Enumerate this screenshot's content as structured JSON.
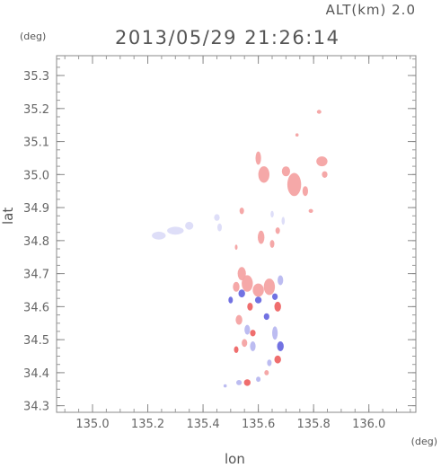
{
  "header": {
    "altitude_label": "ALT(km) 2.0",
    "timestamp": "2013/05/29 21:26:14"
  },
  "axes": {
    "x_unit": "(deg)",
    "y_unit": "(deg)",
    "x_label": "lon",
    "y_label": "lat"
  },
  "chart_data": {
    "type": "heatmap",
    "xlabel": "lon",
    "ylabel": "lat",
    "xlim": [
      134.87,
      136.17
    ],
    "ylim": [
      34.28,
      35.36
    ],
    "x_ticks": [
      "135.0",
      "135.2",
      "135.4",
      "135.6",
      "135.8",
      "136.0"
    ],
    "y_ticks": [
      "34.3",
      "34.4",
      "34.5",
      "34.6",
      "34.7",
      "34.8",
      "34.9",
      "35.0",
      "35.1",
      "35.2",
      "35.3"
    ],
    "colors": {
      "positive": "#f4a3a3",
      "positive_strong": "#ee6666",
      "negative": "#b8b8f0",
      "negative_strong": "#6a6ae0",
      "faint_negative": "#dcdcf8"
    },
    "blobs": [
      {
        "lon": 135.24,
        "lat": 34.815,
        "rx": 0.025,
        "ry": 0.012,
        "sign": "neg",
        "strength": "faint"
      },
      {
        "lon": 135.3,
        "lat": 34.83,
        "rx": 0.03,
        "ry": 0.012,
        "sign": "neg",
        "strength": "faint"
      },
      {
        "lon": 135.35,
        "lat": 34.845,
        "rx": 0.015,
        "ry": 0.012,
        "sign": "neg",
        "strength": "faint"
      },
      {
        "lon": 135.45,
        "lat": 34.87,
        "rx": 0.01,
        "ry": 0.01,
        "sign": "neg",
        "strength": "faint"
      },
      {
        "lon": 135.46,
        "lat": 34.84,
        "rx": 0.008,
        "ry": 0.012,
        "sign": "neg",
        "strength": "faint"
      },
      {
        "lon": 135.82,
        "lat": 35.19,
        "rx": 0.008,
        "ry": 0.006,
        "sign": "pos",
        "strength": "weak"
      },
      {
        "lon": 135.74,
        "lat": 35.12,
        "rx": 0.006,
        "ry": 0.005,
        "sign": "pos",
        "strength": "weak"
      },
      {
        "lon": 135.6,
        "lat": 35.05,
        "rx": 0.01,
        "ry": 0.02,
        "sign": "pos",
        "strength": "weak"
      },
      {
        "lon": 135.62,
        "lat": 35.0,
        "rx": 0.02,
        "ry": 0.025,
        "sign": "pos",
        "strength": "weak"
      },
      {
        "lon": 135.7,
        "lat": 35.01,
        "rx": 0.015,
        "ry": 0.015,
        "sign": "pos",
        "strength": "weak"
      },
      {
        "lon": 135.73,
        "lat": 34.97,
        "rx": 0.025,
        "ry": 0.035,
        "sign": "pos",
        "strength": "weak"
      },
      {
        "lon": 135.77,
        "lat": 34.95,
        "rx": 0.01,
        "ry": 0.015,
        "sign": "pos",
        "strength": "weak"
      },
      {
        "lon": 135.83,
        "lat": 35.04,
        "rx": 0.02,
        "ry": 0.015,
        "sign": "pos",
        "strength": "weak"
      },
      {
        "lon": 135.84,
        "lat": 35.0,
        "rx": 0.01,
        "ry": 0.01,
        "sign": "pos",
        "strength": "weak"
      },
      {
        "lon": 135.79,
        "lat": 34.89,
        "rx": 0.008,
        "ry": 0.006,
        "sign": "pos",
        "strength": "weak"
      },
      {
        "lon": 135.54,
        "lat": 34.89,
        "rx": 0.008,
        "ry": 0.01,
        "sign": "pos",
        "strength": "weak"
      },
      {
        "lon": 135.65,
        "lat": 34.88,
        "rx": 0.006,
        "ry": 0.01,
        "sign": "neg",
        "strength": "faint"
      },
      {
        "lon": 135.69,
        "lat": 34.86,
        "rx": 0.006,
        "ry": 0.012,
        "sign": "neg",
        "strength": "faint"
      },
      {
        "lon": 135.61,
        "lat": 34.81,
        "rx": 0.012,
        "ry": 0.02,
        "sign": "pos",
        "strength": "weak"
      },
      {
        "lon": 135.65,
        "lat": 34.79,
        "rx": 0.008,
        "ry": 0.012,
        "sign": "pos",
        "strength": "weak"
      },
      {
        "lon": 135.67,
        "lat": 34.83,
        "rx": 0.008,
        "ry": 0.01,
        "sign": "pos",
        "strength": "weak"
      },
      {
        "lon": 135.52,
        "lat": 34.78,
        "rx": 0.005,
        "ry": 0.008,
        "sign": "pos",
        "strength": "weak"
      },
      {
        "lon": 135.54,
        "lat": 34.7,
        "rx": 0.015,
        "ry": 0.02,
        "sign": "pos",
        "strength": "weak"
      },
      {
        "lon": 135.56,
        "lat": 34.67,
        "rx": 0.02,
        "ry": 0.025,
        "sign": "pos",
        "strength": "weak"
      },
      {
        "lon": 135.52,
        "lat": 34.66,
        "rx": 0.012,
        "ry": 0.015,
        "sign": "pos",
        "strength": "weak"
      },
      {
        "lon": 135.54,
        "lat": 34.64,
        "rx": 0.012,
        "ry": 0.012,
        "sign": "neg",
        "strength": "strong"
      },
      {
        "lon": 135.5,
        "lat": 34.62,
        "rx": 0.008,
        "ry": 0.01,
        "sign": "neg",
        "strength": "strong"
      },
      {
        "lon": 135.57,
        "lat": 34.6,
        "rx": 0.01,
        "ry": 0.012,
        "sign": "pos",
        "strength": "strong"
      },
      {
        "lon": 135.6,
        "lat": 34.65,
        "rx": 0.02,
        "ry": 0.02,
        "sign": "pos",
        "strength": "weak"
      },
      {
        "lon": 135.6,
        "lat": 34.62,
        "rx": 0.012,
        "ry": 0.01,
        "sign": "neg",
        "strength": "strong"
      },
      {
        "lon": 135.64,
        "lat": 34.66,
        "rx": 0.02,
        "ry": 0.025,
        "sign": "pos",
        "strength": "weak"
      },
      {
        "lon": 135.66,
        "lat": 34.63,
        "rx": 0.01,
        "ry": 0.01,
        "sign": "neg",
        "strength": "strong"
      },
      {
        "lon": 135.68,
        "lat": 34.68,
        "rx": 0.01,
        "ry": 0.015,
        "sign": "neg",
        "strength": "weak"
      },
      {
        "lon": 135.67,
        "lat": 34.6,
        "rx": 0.012,
        "ry": 0.015,
        "sign": "pos",
        "strength": "strong"
      },
      {
        "lon": 135.63,
        "lat": 34.57,
        "rx": 0.01,
        "ry": 0.01,
        "sign": "neg",
        "strength": "strong"
      },
      {
        "lon": 135.53,
        "lat": 34.56,
        "rx": 0.012,
        "ry": 0.015,
        "sign": "pos",
        "strength": "weak"
      },
      {
        "lon": 135.56,
        "lat": 34.53,
        "rx": 0.01,
        "ry": 0.015,
        "sign": "neg",
        "strength": "weak"
      },
      {
        "lon": 135.58,
        "lat": 34.52,
        "rx": 0.01,
        "ry": 0.01,
        "sign": "pos",
        "strength": "strong"
      },
      {
        "lon": 135.55,
        "lat": 34.49,
        "rx": 0.01,
        "ry": 0.012,
        "sign": "pos",
        "strength": "weak"
      },
      {
        "lon": 135.52,
        "lat": 34.47,
        "rx": 0.008,
        "ry": 0.01,
        "sign": "pos",
        "strength": "strong"
      },
      {
        "lon": 135.58,
        "lat": 34.48,
        "rx": 0.01,
        "ry": 0.015,
        "sign": "neg",
        "strength": "weak"
      },
      {
        "lon": 135.66,
        "lat": 34.52,
        "rx": 0.01,
        "ry": 0.02,
        "sign": "neg",
        "strength": "weak"
      },
      {
        "lon": 135.68,
        "lat": 34.48,
        "rx": 0.012,
        "ry": 0.015,
        "sign": "neg",
        "strength": "strong"
      },
      {
        "lon": 135.67,
        "lat": 34.44,
        "rx": 0.012,
        "ry": 0.012,
        "sign": "pos",
        "strength": "strong"
      },
      {
        "lon": 135.64,
        "lat": 34.43,
        "rx": 0.008,
        "ry": 0.01,
        "sign": "neg",
        "strength": "weak"
      },
      {
        "lon": 135.56,
        "lat": 34.37,
        "rx": 0.012,
        "ry": 0.01,
        "sign": "pos",
        "strength": "strong"
      },
      {
        "lon": 135.53,
        "lat": 34.37,
        "rx": 0.01,
        "ry": 0.008,
        "sign": "neg",
        "strength": "weak"
      },
      {
        "lon": 135.6,
        "lat": 34.38,
        "rx": 0.008,
        "ry": 0.008,
        "sign": "neg",
        "strength": "weak"
      },
      {
        "lon": 135.63,
        "lat": 34.4,
        "rx": 0.008,
        "ry": 0.008,
        "sign": "pos",
        "strength": "weak"
      },
      {
        "lon": 135.48,
        "lat": 34.36,
        "rx": 0.006,
        "ry": 0.005,
        "sign": "neg",
        "strength": "weak"
      }
    ]
  }
}
